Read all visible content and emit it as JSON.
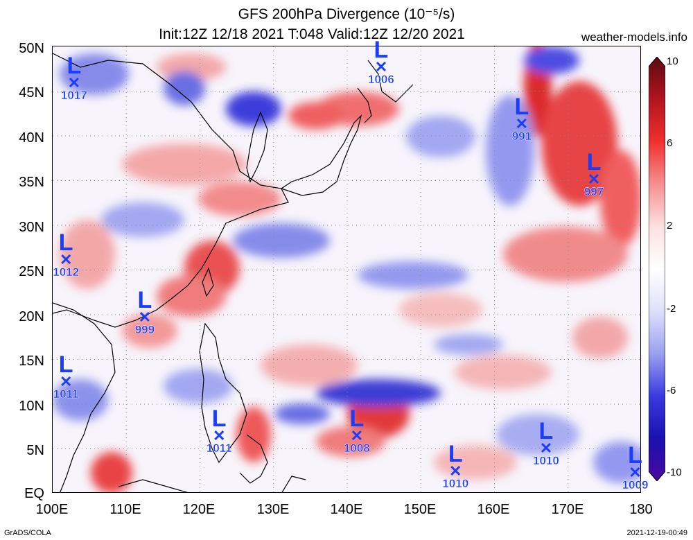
{
  "title": {
    "line1": "GFS 200hPa Divergence (10⁻⁵/s)",
    "line2": "Init:12Z 12/18 2021 T:048 Valid:12Z 12/20 2021"
  },
  "site": "weather-models.info",
  "footer": {
    "left": "GrADS/COLA",
    "right": "2021-12-19-00:49"
  },
  "axes": {
    "lat_labels": [
      "50N",
      "45N",
      "40N",
      "35N",
      "30N",
      "25N",
      "20N",
      "15N",
      "10N",
      "5N",
      "EQ"
    ],
    "lon_labels": [
      "100E",
      "110E",
      "120E",
      "130E",
      "140E",
      "150E",
      "160E",
      "170E",
      "180"
    ]
  },
  "colorbar": {
    "labels": [
      "10",
      "6",
      "2",
      "-2",
      "-6",
      "-10"
    ],
    "colors": [
      "#5a0a14",
      "#b31420",
      "#f03030",
      "#f59090",
      "#fde0e0",
      "#ffffff",
      "#dde0fb",
      "#9aa0ee",
      "#3a3ae0",
      "#1a10b0",
      "#4a0aa0"
    ]
  },
  "lows": [
    {
      "pressure": "1017",
      "lon": 103,
      "lat": 45.7
    },
    {
      "pressure": "1006",
      "lon": 144.7,
      "lat": 47.5
    },
    {
      "pressure": "991",
      "lon": 163.8,
      "lat": 41.2
    },
    {
      "pressure": "997",
      "lon": 173.6,
      "lat": 35
    },
    {
      "pressure": "1012",
      "lon": 101.9,
      "lat": 26
    },
    {
      "pressure": "999",
      "lon": 112.6,
      "lat": 19.5
    },
    {
      "pressure": "1011",
      "lon": 101.9,
      "lat": 12.3
    },
    {
      "pressure": "1011",
      "lon": 122.7,
      "lat": 6.3
    },
    {
      "pressure": "1008",
      "lon": 141.4,
      "lat": 6.3
    },
    {
      "pressure": "1010",
      "lon": 154.8,
      "lat": 2.3
    },
    {
      "pressure": "1010",
      "lon": 167.1,
      "lat": 4.9
    },
    {
      "pressure": "1009",
      "lon": 179.2,
      "lat": 2.2
    }
  ]
}
